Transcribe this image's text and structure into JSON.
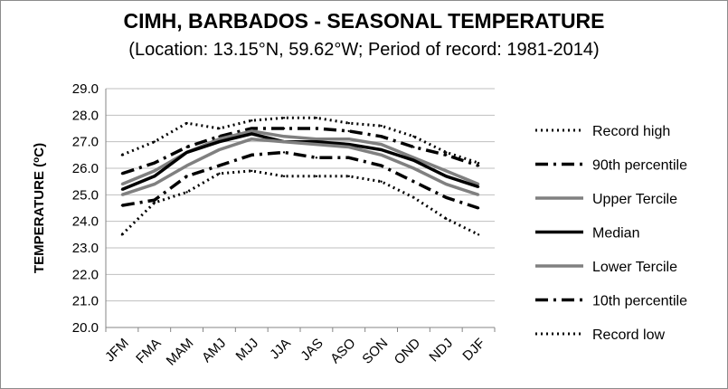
{
  "chart_data": {
    "type": "line",
    "title": "CIMH, BARBADOS - SEASONAL TEMPERATURE",
    "subtitle": "(Location: 13.15°N, 59.62°W; Period of record: 1981-2014)",
    "ylabel_main": "TEMPERATURE (",
    "ylabel_sup": "o",
    "ylabel_end": "C)",
    "xlabel": "",
    "ylim": [
      20.0,
      29.0
    ],
    "yticks": [
      "20.0",
      "21.0",
      "22.0",
      "23.0",
      "24.0",
      "25.0",
      "26.0",
      "27.0",
      "28.0",
      "29.0"
    ],
    "grid": true,
    "legend_position": "right",
    "categories": [
      "JFM",
      "FMA",
      "MAM",
      "AMJ",
      "MJJ",
      "JJA",
      "JAS",
      "ASO",
      "SON",
      "OND",
      "NDJ",
      "DJF"
    ],
    "series": [
      {
        "name": "Record high",
        "color": "#000000",
        "style": "dotted",
        "values": [
          26.5,
          27.0,
          27.7,
          27.5,
          27.8,
          27.9,
          27.9,
          27.7,
          27.6,
          27.2,
          26.6,
          26.2
        ]
      },
      {
        "name": "90th percentile",
        "color": "#000000",
        "style": "dashdot",
        "values": [
          25.8,
          26.2,
          26.8,
          27.2,
          27.5,
          27.5,
          27.5,
          27.4,
          27.2,
          26.8,
          26.5,
          26.1
        ]
      },
      {
        "name": "Upper Tercile",
        "color": "#808080",
        "style": "solid",
        "values": [
          25.4,
          25.9,
          26.6,
          27.1,
          27.4,
          27.2,
          27.1,
          27.1,
          26.9,
          26.4,
          25.9,
          25.4
        ]
      },
      {
        "name": "Median",
        "color": "#000000",
        "style": "solid",
        "values": [
          25.2,
          25.7,
          26.6,
          27.0,
          27.3,
          27.0,
          27.0,
          26.9,
          26.7,
          26.3,
          25.7,
          25.3
        ]
      },
      {
        "name": "Lower Tercile",
        "color": "#808080",
        "style": "solid",
        "values": [
          25.0,
          25.4,
          26.1,
          26.7,
          27.1,
          27.0,
          26.9,
          26.8,
          26.5,
          26.0,
          25.4,
          25.0
        ]
      },
      {
        "name": "10th percentile",
        "color": "#000000",
        "style": "dashdot",
        "values": [
          24.6,
          24.8,
          25.7,
          26.1,
          26.5,
          26.6,
          26.4,
          26.4,
          26.1,
          25.5,
          24.9,
          24.5
        ]
      },
      {
        "name": "Record low",
        "color": "#000000",
        "style": "dotted",
        "values": [
          23.5,
          24.7,
          25.1,
          25.8,
          25.9,
          25.7,
          25.7,
          25.7,
          25.5,
          24.9,
          24.1,
          23.5
        ]
      }
    ]
  }
}
